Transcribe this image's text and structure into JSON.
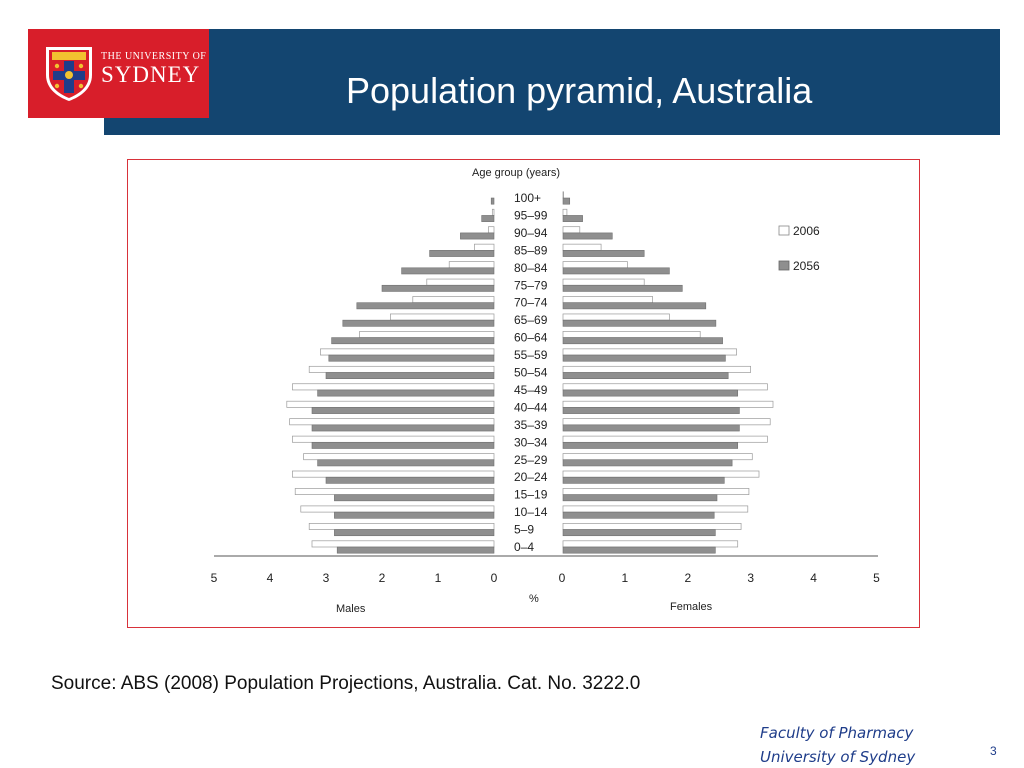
{
  "slide": {
    "title": "Population pyramid, Australia",
    "logo_line1": "THE UNIVERSITY OF",
    "logo_line2": "SYDNEY",
    "source": "Source: ABS (2008) Population Projections, Australia. Cat. No. 3222.0",
    "faculty_line1": "Faculty of Pharmacy",
    "faculty_line2": "University of Sydney",
    "page_number": "3"
  },
  "colors": {
    "header": "#134570",
    "logo_bg": "#d81e2a",
    "frame_border": "#d8323a",
    "series_2006": "#ffffff",
    "series_2056": "#8f8f8f"
  },
  "chart_data": {
    "type": "bar",
    "orientation": "horizontal",
    "ylabel": "Age group (years)",
    "xlabel": "%",
    "left_label": "Males",
    "right_label": "Females",
    "xlim": [
      0,
      5
    ],
    "x_ticks_left": [
      "5",
      "4",
      "3",
      "2",
      "1",
      "0"
    ],
    "x_ticks_right": [
      "0",
      "1",
      "2",
      "3",
      "4",
      "5"
    ],
    "legend_position": "right",
    "categories": [
      "100+",
      "95–99",
      "90–94",
      "85–89",
      "80–84",
      "75–79",
      "70–74",
      "65–69",
      "60–64",
      "55–59",
      "50–54",
      "45–49",
      "40–44",
      "35–39",
      "30–34",
      "25–29",
      "20–24",
      "15–19",
      "10–14",
      "5–9",
      "0–4"
    ],
    "series": [
      {
        "name": "2006",
        "males": [
          0.0,
          0.03,
          0.1,
          0.35,
          0.8,
          1.2,
          1.45,
          1.85,
          2.4,
          3.1,
          3.3,
          3.6,
          3.7,
          3.65,
          3.6,
          3.4,
          3.6,
          3.55,
          3.45,
          3.3,
          3.25
        ],
        "females": [
          0.01,
          0.07,
          0.3,
          0.68,
          1.15,
          1.45,
          1.6,
          1.9,
          2.45,
          3.1,
          3.35,
          3.65,
          3.75,
          3.7,
          3.65,
          3.38,
          3.5,
          3.32,
          3.3,
          3.18,
          3.12
        ]
      },
      {
        "name": "2056",
        "males": [
          0.05,
          0.22,
          0.6,
          1.15,
          1.65,
          2.0,
          2.45,
          2.7,
          2.9,
          2.95,
          3.0,
          3.15,
          3.25,
          3.25,
          3.25,
          3.15,
          3.0,
          2.85,
          2.85,
          2.85,
          2.8
        ],
        "females": [
          0.12,
          0.35,
          0.88,
          1.45,
          1.9,
          2.13,
          2.55,
          2.73,
          2.85,
          2.9,
          2.95,
          3.12,
          3.15,
          3.15,
          3.12,
          3.02,
          2.88,
          2.75,
          2.7,
          2.72,
          2.72
        ]
      }
    ]
  }
}
